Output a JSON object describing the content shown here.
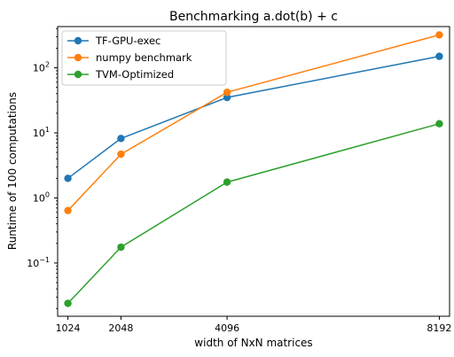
{
  "chart_data": {
    "type": "line",
    "title": "Benchmarking a.dot(b) + c",
    "xlabel": "width of NxN matrices",
    "ylabel": "Runtime of 100 computations",
    "x": [
      1024,
      2048,
      4096,
      8192
    ],
    "xticks": [
      "1024",
      "2048",
      "4096",
      "8192"
    ],
    "xlim": [
      826,
      8390
    ],
    "yscale": "log",
    "ylim": [
      0.0152,
      430
    ],
    "yticks": [
      {
        "value": 0.1,
        "base": "10",
        "exp": "−1"
      },
      {
        "value": 1,
        "base": "10",
        "exp": "0"
      },
      {
        "value": 10,
        "base": "10",
        "exp": "1"
      },
      {
        "value": 100,
        "base": "10",
        "exp": "2"
      }
    ],
    "grid": false,
    "legend_position": "top-left",
    "series": [
      {
        "name": "TF-GPU-exec",
        "color": "#1f77b4",
        "values": [
          2.0,
          8.2,
          35,
          150
        ]
      },
      {
        "name": "numpy benchmark",
        "color": "#ff7f0e",
        "values": [
          0.64,
          4.7,
          42,
          320
        ]
      },
      {
        "name": "TVM-Optimized",
        "color": "#2ca02c",
        "values": [
          0.024,
          0.175,
          1.75,
          13.8
        ]
      }
    ]
  }
}
